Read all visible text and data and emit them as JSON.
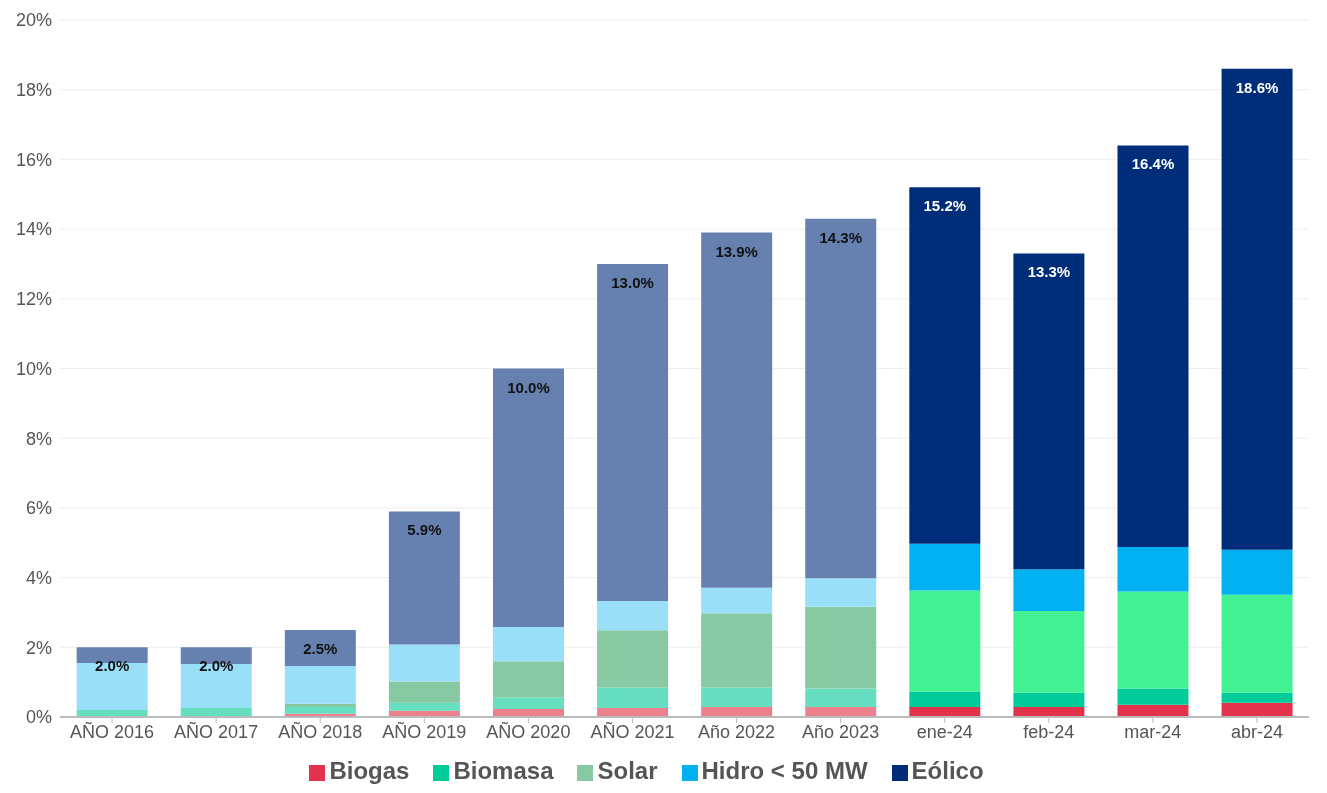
{
  "chart_data": {
    "type": "bar",
    "stacked": true,
    "categories": [
      "AÑO 2016",
      "AÑO 2017",
      "AÑO 2018",
      "AÑO 2019",
      "AÑO 2020",
      "AÑO 2021",
      "Año 2022",
      "Año 2023",
      "ene-24",
      "feb-24",
      "mar-24",
      "abr-24"
    ],
    "series": [
      {
        "name": "Biogas",
        "color": "#e3324b",
        "colors": [
          "#ec808d",
          "#ec808d",
          "#ec808d",
          "#ec808d",
          "#ec808d",
          "#ec808d",
          "#ec808d",
          "#ec808d",
          "#e3324b",
          "#e3324b",
          "#e3324b",
          "#e3324b"
        ],
        "values": [
          0.02,
          0.02,
          0.09,
          0.18,
          0.23,
          0.26,
          0.29,
          0.29,
          0.29,
          0.29,
          0.35,
          0.41
        ]
      },
      {
        "name": "Biomasa",
        "color": "#00cc99",
        "colors": [
          "#66dfc0",
          "#66dfc0",
          "#66dfc0",
          "#66dfc0",
          "#66dfc0",
          "#66dfc0",
          "#66dfc0",
          "#66dfc0",
          "#00cc99",
          "#00cc99",
          "#00cc99",
          "#00cc99"
        ],
        "values": [
          0.18,
          0.24,
          0.2,
          0.23,
          0.33,
          0.59,
          0.56,
          0.53,
          0.44,
          0.41,
          0.47,
          0.29
        ]
      },
      {
        "name": "Solar",
        "color": "#86c9a2",
        "colors": [
          "#86c9a2",
          "#86c9a2",
          "#86c9a2",
          "#86c9a2",
          "#86c9a2",
          "#86c9a2",
          "#86c9a2",
          "#86c9a2",
          "#42f292",
          "#42f292",
          "#42f292",
          "#42f292"
        ],
        "values": [
          0,
          0,
          0.09,
          0.61,
          1.04,
          1.64,
          2.13,
          2.34,
          2.9,
          2.34,
          2.78,
          2.81
        ]
      },
      {
        "name": "Hidro < 50 MW",
        "color": "#00b0f0",
        "colors": [
          "#99dff8",
          "#99dff8",
          "#99dff8",
          "#99dff8",
          "#99dff8",
          "#99dff8",
          "#99dff8",
          "#99dff8",
          "#00b0f0",
          "#00b0f0",
          "#00b0f0",
          "#00b0f0"
        ],
        "values": [
          1.35,
          1.26,
          1.08,
          1.06,
          0.98,
          0.84,
          0.73,
          0.82,
          1.34,
          1.2,
          1.28,
          1.29
        ]
      },
      {
        "name": "Eólico",
        "color": "#002d7a",
        "colors": [
          "#6681b0",
          "#6681b0",
          "#6681b0",
          "#6681b0",
          "#6681b0",
          "#6681b0",
          "#6681b0",
          "#6681b0",
          "#002d7a",
          "#002d7a",
          "#002d7a",
          "#002d7a"
        ],
        "values": [
          0.45,
          0.48,
          1.04,
          3.82,
          7.42,
          9.67,
          10.19,
          10.32,
          10.23,
          9.06,
          11.52,
          13.8
        ]
      }
    ],
    "totals": [
      "2.0%",
      "2.0%",
      "2.5%",
      "5.9%",
      "10.0%",
      "13.0%",
      "13.9%",
      "14.3%",
      "15.2%",
      "13.3%",
      "16.4%",
      "18.6%"
    ],
    "ylim": [
      0,
      20
    ],
    "yticks": [
      {
        "value": 0,
        "label": "0%"
      },
      {
        "value": 2,
        "label": "2%"
      },
      {
        "value": 4,
        "label": "4%"
      },
      {
        "value": 6,
        "label": "6%"
      },
      {
        "value": 8,
        "label": "8%"
      },
      {
        "value": 10,
        "label": "10%"
      },
      {
        "value": 12,
        "label": "12%"
      },
      {
        "value": 14,
        "label": "14%"
      },
      {
        "value": 16,
        "label": "16%"
      },
      {
        "value": 18,
        "label": "18%"
      },
      {
        "value": 20,
        "label": "20%"
      }
    ],
    "grid": "y",
    "legend": "bottom"
  }
}
